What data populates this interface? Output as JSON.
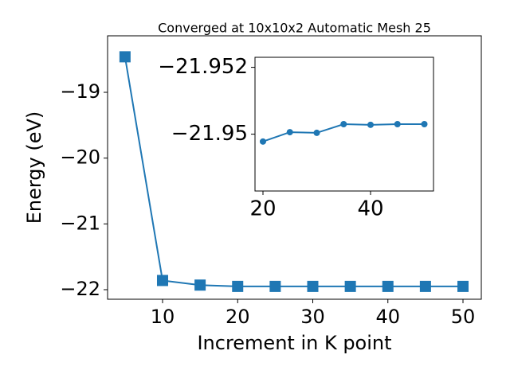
{
  "chart_data": [
    {
      "type": "line",
      "title": "Converged at 10x10x2 Automatic Mesh 25",
      "x_label": "Increment in K point",
      "y_label": "Energy (eV)",
      "x": [
        5,
        10,
        15,
        20,
        25,
        30,
        35,
        40,
        45,
        50
      ],
      "series": [
        {
          "color": "#1f77b4",
          "marker": "square",
          "values": [
            -18.46,
            -21.86,
            -21.93,
            -21.95,
            -21.95,
            -21.95,
            -21.95,
            -21.95,
            -21.95,
            -21.95
          ]
        }
      ],
      "xlim": [
        2.68,
        52.44
      ],
      "ylim": [
        -22.145,
        -18.141
      ],
      "xticks": [
        10,
        20,
        30,
        40,
        50
      ],
      "yticks": [
        -22,
        -21,
        -20,
        -19
      ]
    },
    {
      "type": "line",
      "x": [
        20,
        25,
        30,
        35,
        40,
        45,
        50
      ],
      "series": [
        {
          "color": "#1f77b4",
          "marker": "circle",
          "values": [
            -21.94978,
            -21.95006,
            -21.95004,
            -21.9503,
            -21.95028,
            -21.9503,
            -21.9503
          ]
        }
      ],
      "xlim": [
        18.52,
        51.7
      ],
      "ylim": [
        -21.9483,
        -21.9523
      ],
      "xticks": [
        20,
        40
      ],
      "yticks": [
        -21.95,
        -21.952
      ]
    }
  ]
}
